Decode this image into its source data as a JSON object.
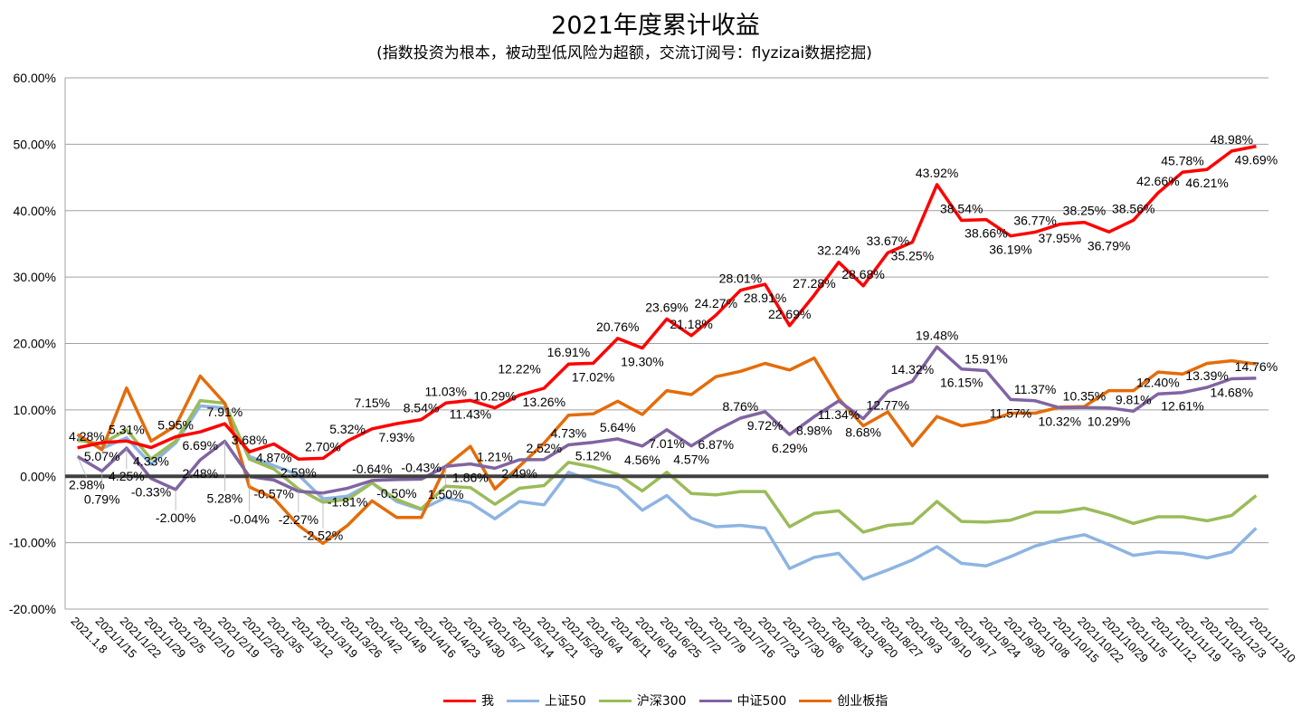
{
  "chart_data": {
    "type": "line",
    "title": "2021年度累计收益",
    "subtitle": "(指数投资为根本，被动型低风险为超额，交流订阅号：flyzizai数据挖掘)",
    "xlabel": "",
    "ylabel": "",
    "ylim": [
      -20,
      60
    ],
    "yticks": [
      "60.00%",
      "50.00%",
      "40.00%",
      "30.00%",
      "20.00%",
      "10.00%",
      "0.00%",
      "-10.00%",
      "-20.00%"
    ],
    "ytick_values": [
      60,
      50,
      40,
      30,
      20,
      10,
      0,
      -10,
      -20
    ],
    "grid": true,
    "legend_position": "bottom",
    "categories": [
      "2021.1.8",
      "2021/1/15",
      "2021/1/22",
      "2021/1/29",
      "2021/2/5",
      "2021/2/10",
      "2021/2/19",
      "2021/2/26",
      "2021/3/5",
      "2021/3/12",
      "2021/3/19",
      "2021/3/26",
      "2021/4/2",
      "2021/4/9",
      "2021/4/16",
      "2021/4/23",
      "2021/4/30",
      "2021/5/7",
      "2021/5/14",
      "2021/5/21",
      "2021/5/28",
      "2021/6/4",
      "2021/6/11",
      "2021/6/18",
      "2021/6/25",
      "2021/7/2",
      "2021/7/9",
      "2021/7/16",
      "2021/7/23",
      "2021/7/30",
      "2021/8/6",
      "2021/8/13",
      "2021/8/20",
      "2021/8/27",
      "2021/9/3",
      "2021/9/10",
      "2021/9/17",
      "2021/9/24",
      "2021/9/30",
      "2021/10/8",
      "2021/10/15",
      "2021/10/22",
      "2021/10/29",
      "2021/11/5",
      "2021/11/12",
      "2021/11/19",
      "2021/11/26",
      "2021/12/3",
      "2021/12/10"
    ],
    "series": [
      {
        "name": "上证50",
        "color": "#8db4e2",
        "labels": false,
        "values": [
          5.8,
          4.2,
          5.8,
          1.8,
          5.0,
          10.6,
          10.3,
          3.0,
          1.6,
          0.2,
          -3.4,
          -3.0,
          -1.0,
          -3.8,
          -5.0,
          -3.2,
          -4.0,
          -6.4,
          -3.8,
          -4.3,
          0.6,
          -0.7,
          -1.7,
          -5.1,
          -2.9,
          -6.3,
          -7.6,
          -7.4,
          -7.8,
          -13.9,
          -12.2,
          -11.6,
          -15.5,
          -14.1,
          -12.6,
          -10.6,
          -13.1,
          -13.5,
          -12.1,
          -10.5,
          -9.5,
          -8.8,
          -10.3,
          -11.9,
          -11.4,
          -11.6,
          -12.3,
          -11.4,
          -7.8
        ]
      },
      {
        "name": "沪深300",
        "color": "#9bbb59",
        "labels": false,
        "values": [
          5.4,
          4.9,
          7.0,
          2.6,
          5.3,
          11.4,
          11.0,
          2.6,
          1.1,
          -1.9,
          -3.9,
          -3.5,
          -1.0,
          -3.5,
          -4.9,
          -1.5,
          -1.7,
          -4.2,
          -1.8,
          -1.4,
          2.1,
          1.4,
          0.3,
          -2.2,
          0.6,
          -2.6,
          -2.8,
          -2.3,
          -2.3,
          -7.6,
          -5.6,
          -5.2,
          -8.4,
          -7.4,
          -7.1,
          -3.8,
          -6.8,
          -6.9,
          -6.6,
          -5.4,
          -5.4,
          -4.8,
          -5.8,
          -7.1,
          -6.1,
          -6.1,
          -6.7,
          -5.9,
          -2.9
        ]
      },
      {
        "name": "创业板指",
        "color": "#e46c0a",
        "labels": false,
        "values": [
          6.3,
          4.0,
          13.3,
          5.3,
          7.6,
          15.1,
          11.0,
          -1.6,
          -3.3,
          -7.4,
          -10.1,
          -7.4,
          -3.7,
          -6.2,
          -6.2,
          1.5,
          4.5,
          -1.9,
          1.5,
          5.0,
          9.2,
          9.4,
          11.3,
          9.3,
          12.9,
          12.3,
          15.0,
          15.8,
          17.0,
          16.0,
          17.8,
          11.7,
          7.6,
          9.7,
          4.6,
          9.0,
          7.6,
          8.2,
          9.5,
          9.5,
          10.4,
          10.5,
          12.9,
          12.9,
          15.7,
          15.4,
          17.0,
          17.4,
          16.9
        ]
      },
      {
        "name": "中证500",
        "color": "#8064a2",
        "labels": true,
        "label_pos": "below",
        "values": [
          2.98,
          0.79,
          4.25,
          -0.33,
          -2.0,
          2.48,
          5.28,
          -0.04,
          -0.57,
          -2.27,
          -2.52,
          -1.81,
          -0.64,
          -0.5,
          -0.43,
          1.5,
          1.86,
          1.21,
          2.49,
          2.52,
          4.73,
          5.12,
          5.64,
          4.56,
          7.01,
          4.57,
          6.87,
          8.76,
          9.72,
          6.29,
          8.98,
          11.34,
          8.68,
          12.77,
          14.32,
          19.48,
          16.15,
          15.91,
          11.57,
          11.37,
          10.32,
          10.35,
          10.29,
          9.81,
          12.4,
          12.61,
          13.39,
          14.68,
          14.76
        ]
      },
      {
        "name": "我",
        "color": "#ff0000",
        "labels": true,
        "label_pos": "above",
        "values": [
          4.28,
          5.07,
          5.31,
          4.33,
          5.95,
          6.69,
          7.91,
          3.68,
          4.87,
          2.59,
          2.7,
          5.32,
          7.15,
          7.93,
          8.54,
          11.03,
          11.43,
          10.29,
          12.22,
          13.26,
          16.91,
          17.02,
          20.76,
          19.3,
          23.69,
          21.18,
          24.27,
          28.01,
          28.91,
          22.69,
          27.28,
          32.24,
          28.68,
          33.67,
          35.25,
          43.92,
          38.54,
          38.66,
          36.19,
          36.77,
          37.95,
          38.25,
          36.79,
          38.56,
          42.66,
          45.78,
          46.21,
          48.98,
          49.69
        ]
      }
    ],
    "legend_order": [
      "我",
      "上证50",
      "沪深300",
      "中证500",
      "创业板指"
    ]
  }
}
